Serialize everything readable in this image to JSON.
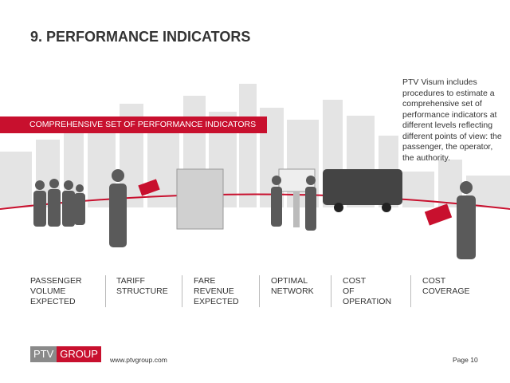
{
  "header": {
    "title": "9. PERFORMANCE INDICATORS"
  },
  "banner": "COMPREHENSIVE SET OF PERFORMANCE INDICATORS",
  "description": "PTV Visum includes procedures to estimate a comprehensive set of performance indicators at different levels reflecting different points of view: the passenger, the operator, the authority.",
  "indicators": [
    [
      "PASSENGER",
      "VOLUME",
      "EXPECTED"
    ],
    [
      "TARIFF",
      "STRUCTURE"
    ],
    [
      "FARE",
      "REVENUE",
      "EXPECTED"
    ],
    [
      "OPTIMAL",
      "NETWORK"
    ],
    [
      "COST",
      "OF",
      "OPERATION"
    ],
    [
      "COST",
      "COVERAGE"
    ]
  ],
  "footer": {
    "logo": [
      "PTV",
      "GROUP"
    ],
    "url": "www.ptvgroup.com",
    "page": "Page 10"
  }
}
